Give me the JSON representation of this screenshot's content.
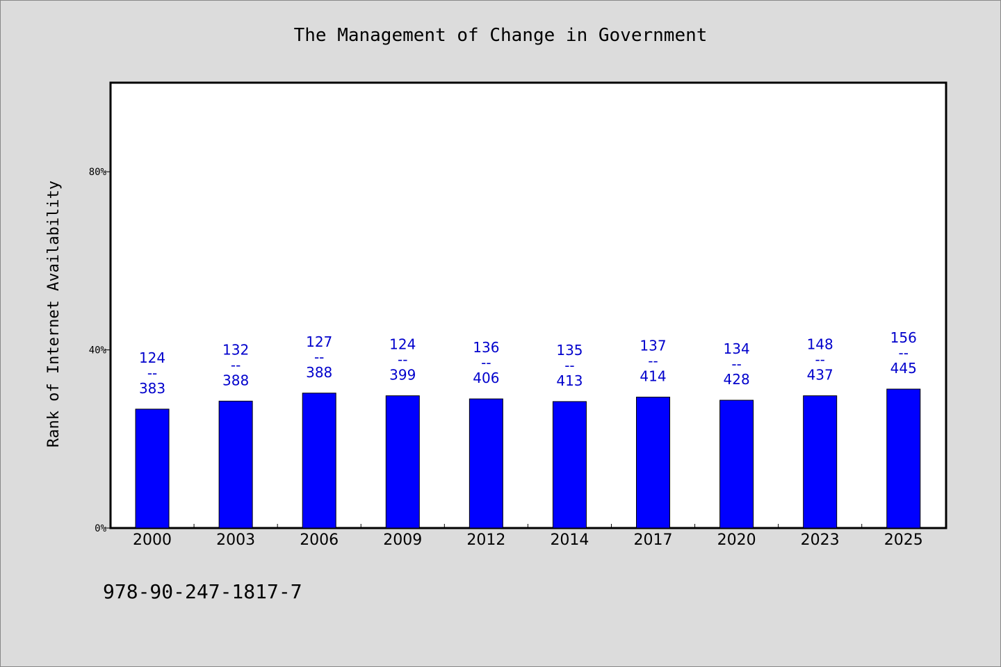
{
  "chart_data": {
    "type": "bar",
    "title": "The Management of Change in Government",
    "xlabel": "",
    "ylabel": "Rank of Internet Availability",
    "ylim": [
      0,
      1
    ],
    "yticks": [
      0,
      0.4,
      0.8
    ],
    "ytick_labels": [
      "0%",
      "40%",
      "80%"
    ],
    "categories": [
      "2000",
      "2003",
      "2006",
      "2009",
      "2012",
      "2014",
      "2017",
      "2020",
      "2023",
      "2025"
    ],
    "values": [
      0.267,
      0.285,
      0.303,
      0.297,
      0.29,
      0.284,
      0.294,
      0.287,
      0.297,
      0.312
    ],
    "label_top": [
      "124",
      "132",
      "127",
      "124",
      "136",
      "135",
      "137",
      "134",
      "148",
      "156"
    ],
    "label_bottom": [
      "383",
      "388",
      "388",
      "399",
      "406",
      "413",
      "414",
      "428",
      "437",
      "445"
    ],
    "label_separator": "--",
    "bar_color": "#0000ff",
    "label_color": "#0000cc",
    "grid": false
  },
  "footer": {
    "code": "978-90-247-1817-7"
  }
}
